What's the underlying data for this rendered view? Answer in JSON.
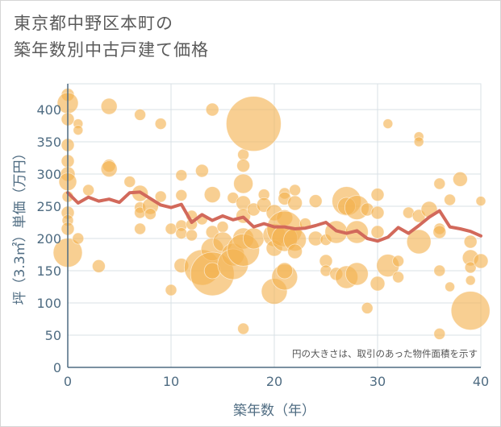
{
  "title_lines": [
    "東京都中野区本町の",
    "築年数別中古戸建て価格"
  ],
  "chart_data": {
    "type": "scatter",
    "title": "東京都中野区本町の築年数別中古戸建て価格",
    "xlabel": "築年数（年）",
    "ylabel": "坪（3.3㎡）単価（万円）",
    "xlim": [
      0,
      40
    ],
    "ylim": [
      0,
      440
    ],
    "x_ticks": [
      "0",
      "10",
      "20",
      "30",
      "40"
    ],
    "y_ticks": [
      "0",
      "50",
      "100",
      "150",
      "200",
      "250",
      "300",
      "350",
      "400"
    ],
    "grid": true,
    "note": "円の大きさは、取引のあった物件面積を示す",
    "colors": {
      "bubble": "#f3b24f",
      "line": "#d2695b",
      "grid": "#d9e1e6",
      "axis": "#4f6c82"
    },
    "average_line": {
      "x": [
        0,
        1,
        2,
        3,
        4,
        5,
        6,
        7,
        8,
        9,
        10,
        11,
        12,
        13,
        14,
        15,
        16,
        17,
        18,
        19,
        20,
        21,
        22,
        23,
        24,
        25,
        26,
        27,
        28,
        29,
        30,
        31,
        32,
        33,
        34,
        35,
        36,
        37,
        38,
        39,
        40
      ],
      "y": [
        271,
        255,
        264,
        258,
        261,
        256,
        271,
        272,
        262,
        252,
        248,
        253,
        225,
        237,
        228,
        235,
        229,
        233,
        218,
        223,
        218,
        218,
        215,
        216,
        220,
        225,
        212,
        208,
        212,
        200,
        196,
        202,
        217,
        208,
        220,
        233,
        243,
        218,
        215,
        211,
        204
      ]
    },
    "bubbles": [
      {
        "x": 0,
        "y": 423,
        "s": 8
      },
      {
        "x": 0,
        "y": 410,
        "s": 13
      },
      {
        "x": 0,
        "y": 385,
        "s": 8
      },
      {
        "x": 0,
        "y": 345,
        "s": 8
      },
      {
        "x": 0,
        "y": 320,
        "s": 8
      },
      {
        "x": 0,
        "y": 300,
        "s": 9
      },
      {
        "x": 0,
        "y": 288,
        "s": 11
      },
      {
        "x": 0,
        "y": 265,
        "s": 7
      },
      {
        "x": 0,
        "y": 240,
        "s": 8
      },
      {
        "x": 0,
        "y": 228,
        "s": 7
      },
      {
        "x": 0,
        "y": 215,
        "s": 8
      },
      {
        "x": 0,
        "y": 178,
        "s": 18
      },
      {
        "x": 1,
        "y": 378,
        "s": 6
      },
      {
        "x": 1,
        "y": 368,
        "s": 6
      },
      {
        "x": 1,
        "y": 200,
        "s": 7
      },
      {
        "x": 2,
        "y": 275,
        "s": 7
      },
      {
        "x": 3,
        "y": 157,
        "s": 8
      },
      {
        "x": 4,
        "y": 405,
        "s": 10
      },
      {
        "x": 4,
        "y": 313,
        "s": 8
      },
      {
        "x": 4,
        "y": 308,
        "s": 10
      },
      {
        "x": 6,
        "y": 288,
        "s": 7
      },
      {
        "x": 7,
        "y": 392,
        "s": 7
      },
      {
        "x": 7,
        "y": 270,
        "s": 10
      },
      {
        "x": 7,
        "y": 248,
        "s": 7
      },
      {
        "x": 7,
        "y": 240,
        "s": 7
      },
      {
        "x": 7,
        "y": 215,
        "s": 7
      },
      {
        "x": 8,
        "y": 250,
        "s": 10
      },
      {
        "x": 8,
        "y": 238,
        "s": 7
      },
      {
        "x": 9,
        "y": 378,
        "s": 7
      },
      {
        "x": 9,
        "y": 265,
        "s": 7
      },
      {
        "x": 10,
        "y": 215,
        "s": 7
      },
      {
        "x": 10,
        "y": 120,
        "s": 7
      },
      {
        "x": 11,
        "y": 298,
        "s": 7
      },
      {
        "x": 11,
        "y": 267,
        "s": 7
      },
      {
        "x": 11,
        "y": 220,
        "s": 7
      },
      {
        "x": 11,
        "y": 208,
        "s": 7
      },
      {
        "x": 11,
        "y": 158,
        "s": 9
      },
      {
        "x": 12,
        "y": 235,
        "s": 7
      },
      {
        "x": 12,
        "y": 222,
        "s": 7
      },
      {
        "x": 12,
        "y": 205,
        "s": 7
      },
      {
        "x": 13,
        "y": 305,
        "s": 8
      },
      {
        "x": 13,
        "y": 230,
        "s": 7
      },
      {
        "x": 13,
        "y": 155,
        "s": 22
      },
      {
        "x": 14,
        "y": 268,
        "s": 10
      },
      {
        "x": 14,
        "y": 210,
        "s": 8
      },
      {
        "x": 14,
        "y": 183,
        "s": 14
      },
      {
        "x": 14,
        "y": 145,
        "s": 27
      },
      {
        "x": 14,
        "y": 150,
        "s": 10
      },
      {
        "x": 14,
        "y": 400,
        "s": 8
      },
      {
        "x": 15,
        "y": 218,
        "s": 7
      },
      {
        "x": 15,
        "y": 195,
        "s": 12
      },
      {
        "x": 16,
        "y": 263,
        "s": 7
      },
      {
        "x": 16,
        "y": 175,
        "s": 14
      },
      {
        "x": 16,
        "y": 160,
        "s": 19
      },
      {
        "x": 17,
        "y": 330,
        "s": 7
      },
      {
        "x": 17,
        "y": 313,
        "s": 8
      },
      {
        "x": 17,
        "y": 285,
        "s": 12
      },
      {
        "x": 17,
        "y": 255,
        "s": 9
      },
      {
        "x": 17,
        "y": 235,
        "s": 9
      },
      {
        "x": 17,
        "y": 200,
        "s": 13
      },
      {
        "x": 17,
        "y": 182,
        "s": 20
      },
      {
        "x": 17,
        "y": 60,
        "s": 7
      },
      {
        "x": 18,
        "y": 378,
        "s": 34
      },
      {
        "x": 18,
        "y": 245,
        "s": 8
      },
      {
        "x": 18,
        "y": 200,
        "s": 13
      },
      {
        "x": 19,
        "y": 268,
        "s": 7
      },
      {
        "x": 19,
        "y": 252,
        "s": 9
      },
      {
        "x": 20,
        "y": 240,
        "s": 10
      },
      {
        "x": 20,
        "y": 205,
        "s": 14
      },
      {
        "x": 20,
        "y": 185,
        "s": 10
      },
      {
        "x": 20,
        "y": 118,
        "s": 16
      },
      {
        "x": 21,
        "y": 270,
        "s": 7
      },
      {
        "x": 21,
        "y": 262,
        "s": 8
      },
      {
        "x": 21,
        "y": 232,
        "s": 10
      },
      {
        "x": 21,
        "y": 215,
        "s": 22
      },
      {
        "x": 21,
        "y": 200,
        "s": 16
      },
      {
        "x": 21,
        "y": 140,
        "s": 16
      },
      {
        "x": 21,
        "y": 150,
        "s": 10
      },
      {
        "x": 22,
        "y": 275,
        "s": 7
      },
      {
        "x": 22,
        "y": 255,
        "s": 9
      },
      {
        "x": 22,
        "y": 198,
        "s": 14
      },
      {
        "x": 22,
        "y": 180,
        "s": 9
      },
      {
        "x": 23,
        "y": 223,
        "s": 7
      },
      {
        "x": 24,
        "y": 258,
        "s": 8
      },
      {
        "x": 24,
        "y": 200,
        "s": 9
      },
      {
        "x": 25,
        "y": 198,
        "s": 7
      },
      {
        "x": 25,
        "y": 165,
        "s": 8
      },
      {
        "x": 25,
        "y": 150,
        "s": 7
      },
      {
        "x": 26,
        "y": 210,
        "s": 14
      },
      {
        "x": 26,
        "y": 145,
        "s": 8
      },
      {
        "x": 27,
        "y": 258,
        "s": 18
      },
      {
        "x": 27,
        "y": 250,
        "s": 11
      },
      {
        "x": 27,
        "y": 140,
        "s": 14
      },
      {
        "x": 28,
        "y": 248,
        "s": 15
      },
      {
        "x": 28,
        "y": 210,
        "s": 14
      },
      {
        "x": 28,
        "y": 145,
        "s": 14
      },
      {
        "x": 29,
        "y": 245,
        "s": 8
      },
      {
        "x": 29,
        "y": 92,
        "s": 7
      },
      {
        "x": 30,
        "y": 268,
        "s": 8
      },
      {
        "x": 30,
        "y": 240,
        "s": 8
      },
      {
        "x": 30,
        "y": 210,
        "s": 8
      },
      {
        "x": 30,
        "y": 130,
        "s": 9
      },
      {
        "x": 31,
        "y": 378,
        "s": 6
      },
      {
        "x": 31,
        "y": 158,
        "s": 14
      },
      {
        "x": 32,
        "y": 165,
        "s": 7
      },
      {
        "x": 32,
        "y": 140,
        "s": 7
      },
      {
        "x": 33,
        "y": 240,
        "s": 7
      },
      {
        "x": 34,
        "y": 358,
        "s": 6
      },
      {
        "x": 34,
        "y": 350,
        "s": 6
      },
      {
        "x": 34,
        "y": 235,
        "s": 8
      },
      {
        "x": 34,
        "y": 195,
        "s": 15
      },
      {
        "x": 35,
        "y": 245,
        "s": 10
      },
      {
        "x": 36,
        "y": 285,
        "s": 7
      },
      {
        "x": 36,
        "y": 215,
        "s": 7
      },
      {
        "x": 36,
        "y": 210,
        "s": 8
      },
      {
        "x": 36,
        "y": 150,
        "s": 7
      },
      {
        "x": 36,
        "y": 52,
        "s": 7
      },
      {
        "x": 37,
        "y": 260,
        "s": 7
      },
      {
        "x": 37,
        "y": 125,
        "s": 6
      },
      {
        "x": 38,
        "y": 292,
        "s": 9
      },
      {
        "x": 39,
        "y": 195,
        "s": 8
      },
      {
        "x": 39,
        "y": 170,
        "s": 10
      },
      {
        "x": 39,
        "y": 155,
        "s": 7
      },
      {
        "x": 39,
        "y": 135,
        "s": 6
      },
      {
        "x": 39,
        "y": 88,
        "s": 24
      },
      {
        "x": 40,
        "y": 258,
        "s": 6
      },
      {
        "x": 40,
        "y": 165,
        "s": 9
      }
    ]
  }
}
